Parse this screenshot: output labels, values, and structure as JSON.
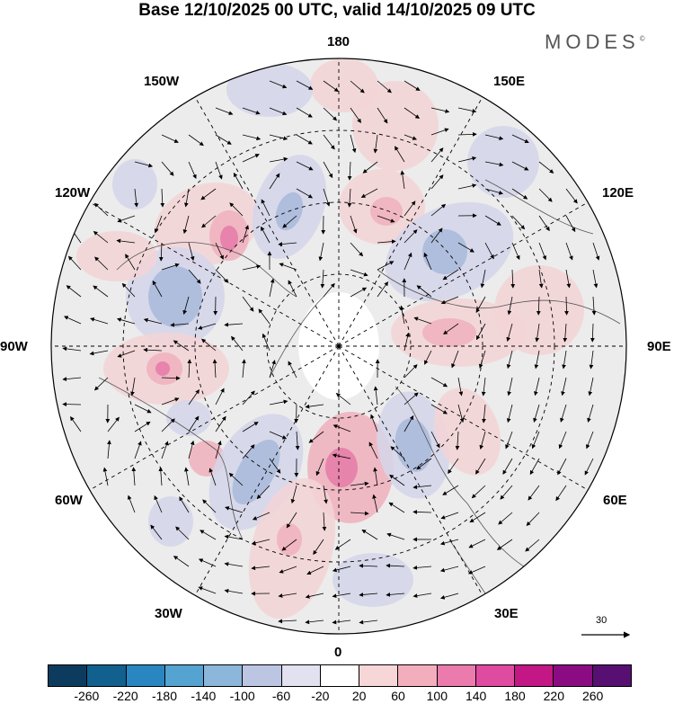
{
  "title": "Base 12/10/2025 00 UTC, valid 14/10/2025 09 UTC",
  "brand": "MODES",
  "brand_mark": "©",
  "longitude_labels": {
    "top": "180",
    "bottom": "0",
    "left": "90W",
    "right": "90E",
    "upper_left_1": "150W",
    "upper_left_2": "120W",
    "upper_right_1": "150E",
    "upper_right_2": "120E",
    "lower_left_1": "60W",
    "lower_left_2": "30W",
    "lower_right_1": "60E",
    "lower_right_2": "30E"
  },
  "reference_vector": {
    "value": "30"
  },
  "colorbar": {
    "colors": [
      "#0d3b5e",
      "#11608e",
      "#2a86c0",
      "#54a3d0",
      "#8cb6da",
      "#bcc6e2",
      "#e1e1f0",
      "#ffffff",
      "#f7d6d8",
      "#f2aebd",
      "#ea7bac",
      "#de4ba0",
      "#c21785",
      "#8b0c82",
      "#571071"
    ],
    "tick_labels": [
      "-260",
      "-220",
      "-180",
      "-140",
      "-100",
      "-60",
      "-20",
      "20",
      "60",
      "100",
      "140",
      "180",
      "220",
      "260"
    ]
  },
  "anomaly_palette": {
    "blue_light": "#d3d6ea",
    "blue_mid": "#a9b8da",
    "blue_dark": "#5e97c8",
    "red_light": "#f3d3d6",
    "red_mid": "#f0b0bd",
    "red_dark": "#e57aa8",
    "land_gray": "#ececec"
  }
}
